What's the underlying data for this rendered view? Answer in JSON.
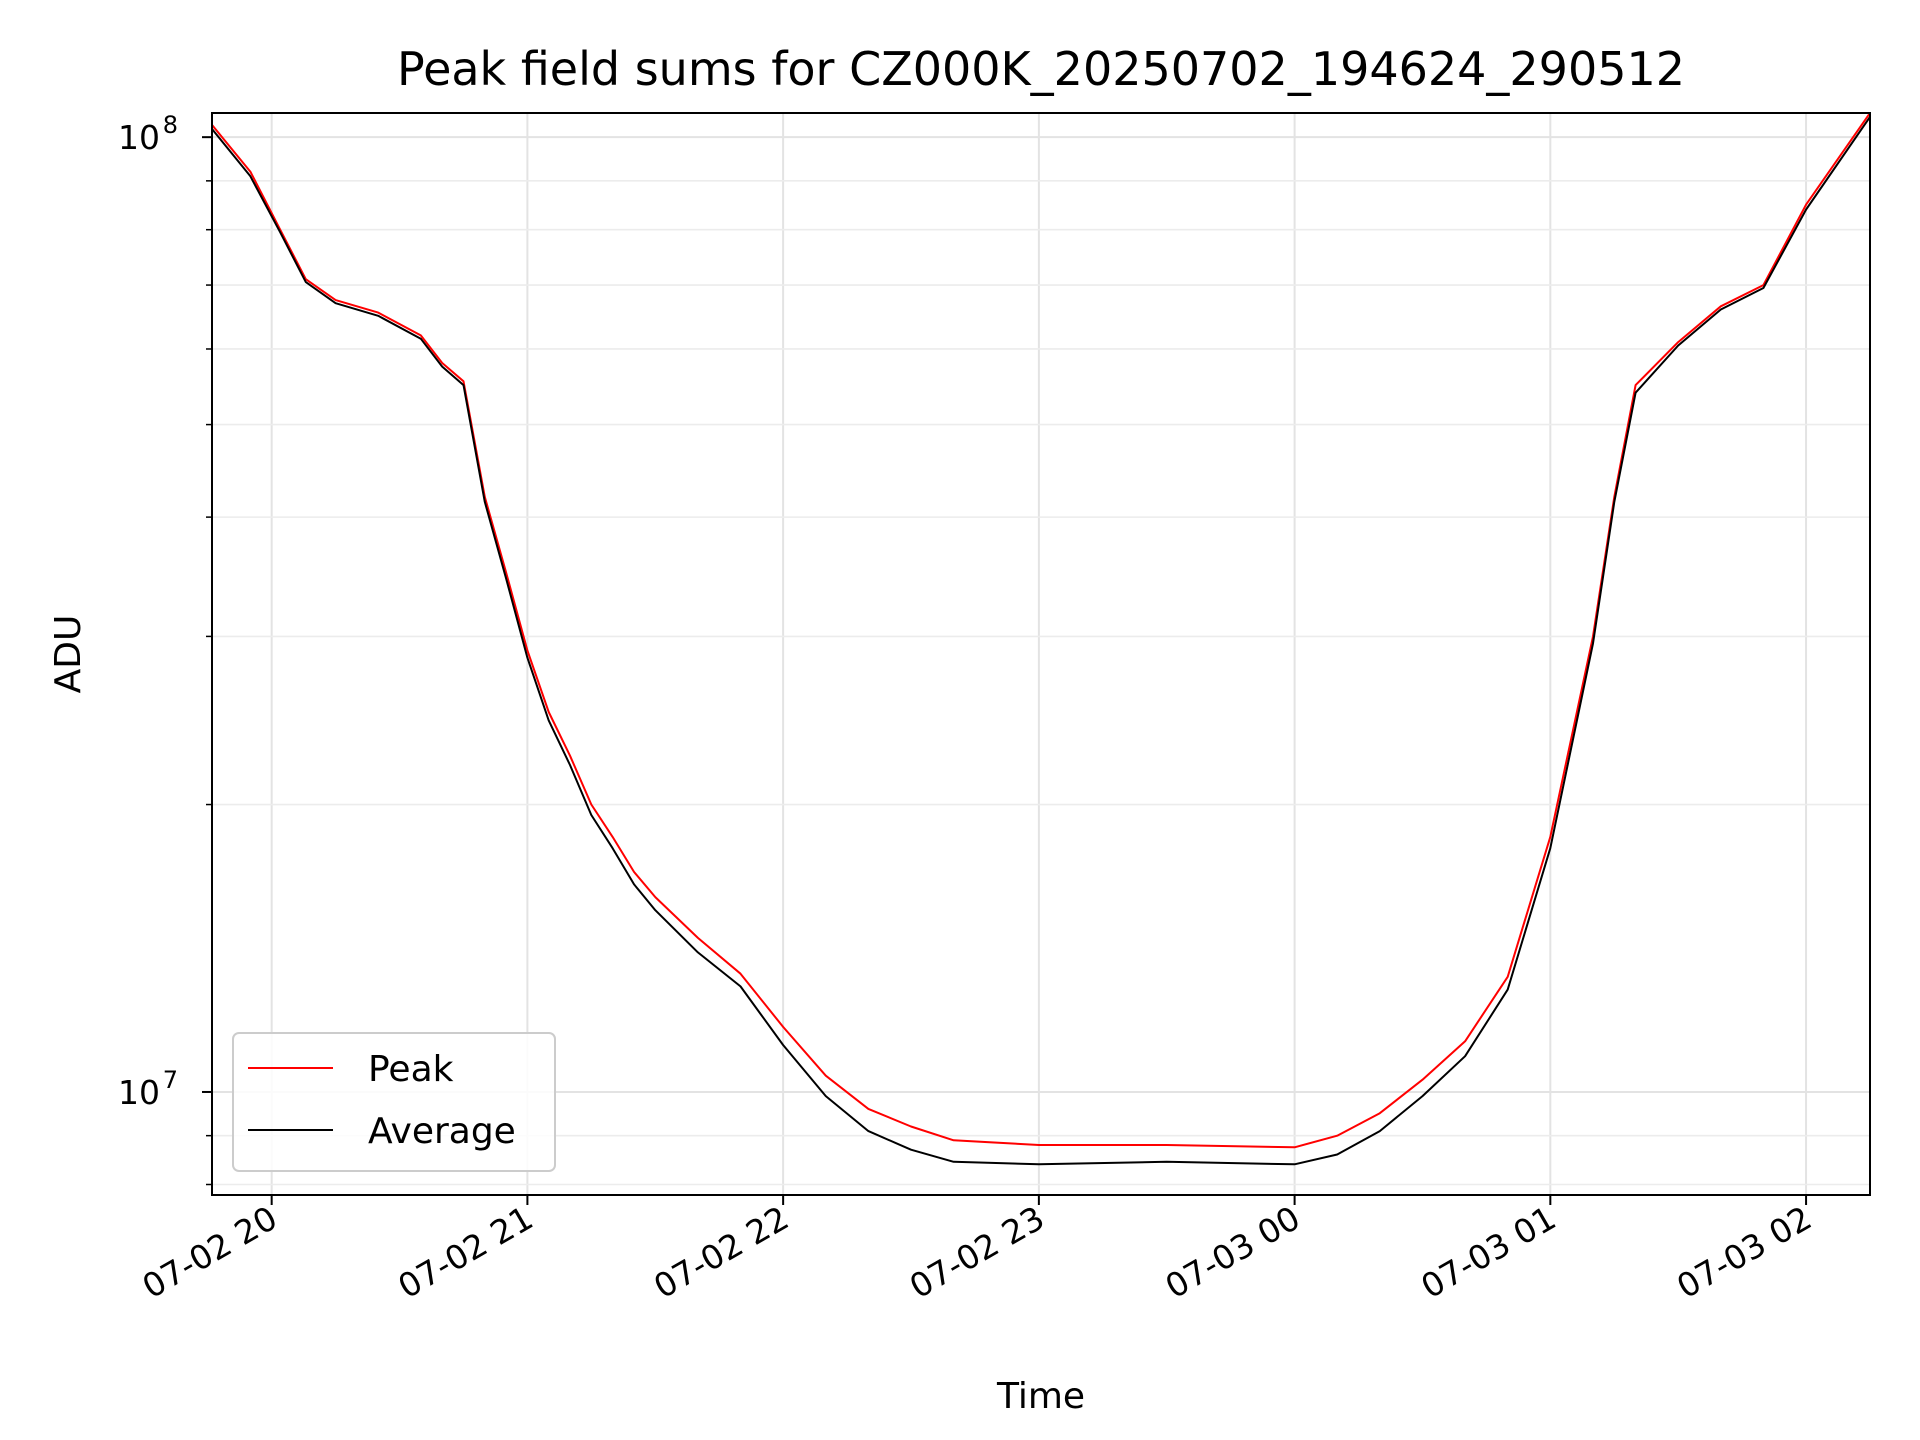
{
  "chart_data": {
    "type": "line",
    "title": "Peak field sums for CZ000K_20250702_194624_290512",
    "xlabel": "Time",
    "ylabel": "ADU",
    "yscale": "log",
    "xlim": [
      "2025-07-02T19:46",
      "2025-07-03T02:15"
    ],
    "ylim": [
      7800000,
      106000000
    ],
    "x_ticks": [
      "07-02 20",
      "07-02 21",
      "07-02 22",
      "07-02 23",
      "07-03 00",
      "07-03 01",
      "07-03 02"
    ],
    "x_tick_times": [
      "2025-07-02T20:00",
      "2025-07-02T21:00",
      "2025-07-02T22:00",
      "2025-07-02T23:00",
      "2025-07-03T00:00",
      "2025-07-03T01:00",
      "2025-07-03T02:00"
    ],
    "y_ticks": [
      "10^7",
      "10^8"
    ],
    "grid": true,
    "legend_position": "lower-left",
    "series": [
      {
        "name": "Peak",
        "color": "#ff0000",
        "points": [
          [
            "2025-07-02T19:46",
            103000000
          ],
          [
            "2025-07-02T19:55",
            92000000
          ],
          [
            "2025-07-02T20:02",
            80000000
          ],
          [
            "2025-07-02T20:08",
            71000000
          ],
          [
            "2025-07-02T20:15",
            67500000
          ],
          [
            "2025-07-02T20:25",
            65500000
          ],
          [
            "2025-07-02T20:35",
            62000000
          ],
          [
            "2025-07-02T20:40",
            58000000
          ],
          [
            "2025-07-02T20:45",
            55500000
          ],
          [
            "2025-07-02T20:50",
            42000000
          ],
          [
            "2025-07-02T20:55",
            35000000
          ],
          [
            "2025-07-02T21:00",
            29000000
          ],
          [
            "2025-07-02T21:05",
            25000000
          ],
          [
            "2025-07-02T21:10",
            22500000
          ],
          [
            "2025-07-02T21:15",
            20000000
          ],
          [
            "2025-07-02T21:20",
            18500000
          ],
          [
            "2025-07-02T21:25",
            17000000
          ],
          [
            "2025-07-02T21:30",
            16000000
          ],
          [
            "2025-07-02T21:40",
            14500000
          ],
          [
            "2025-07-02T21:50",
            13300000
          ],
          [
            "2025-07-02T22:00",
            11700000
          ],
          [
            "2025-07-02T22:10",
            10400000
          ],
          [
            "2025-07-02T22:20",
            9600000
          ],
          [
            "2025-07-02T22:30",
            9200000
          ],
          [
            "2025-07-02T22:40",
            8900000
          ],
          [
            "2025-07-02T23:00",
            8800000
          ],
          [
            "2025-07-02T23:30",
            8800000
          ],
          [
            "2025-07-03T00:00",
            8750000
          ],
          [
            "2025-07-03T00:10",
            9000000
          ],
          [
            "2025-07-03T00:20",
            9500000
          ],
          [
            "2025-07-03T00:30",
            10300000
          ],
          [
            "2025-07-03T00:40",
            11300000
          ],
          [
            "2025-07-03T00:50",
            13200000
          ],
          [
            "2025-07-03T01:00",
            18500000
          ],
          [
            "2025-07-03T01:10",
            30000000
          ],
          [
            "2025-07-03T01:15",
            42000000
          ],
          [
            "2025-07-03T01:20",
            55000000
          ],
          [
            "2025-07-03T01:30",
            61000000
          ],
          [
            "2025-07-03T01:40",
            66500000
          ],
          [
            "2025-07-03T01:50",
            70000000
          ],
          [
            "2025-07-03T02:00",
            85000000
          ],
          [
            "2025-07-03T02:15",
            106000000
          ]
        ]
      },
      {
        "name": "Average",
        "color": "#000000",
        "points": [
          [
            "2025-07-02T19:46",
            102000000
          ],
          [
            "2025-07-02T19:55",
            91000000
          ],
          [
            "2025-07-02T20:02",
            79500000
          ],
          [
            "2025-07-02T20:08",
            70500000
          ],
          [
            "2025-07-02T20:15",
            67000000
          ],
          [
            "2025-07-02T20:25",
            65000000
          ],
          [
            "2025-07-02T20:35",
            61500000
          ],
          [
            "2025-07-02T20:40",
            57500000
          ],
          [
            "2025-07-02T20:45",
            55000000
          ],
          [
            "2025-07-02T20:50",
            41500000
          ],
          [
            "2025-07-02T20:55",
            34500000
          ],
          [
            "2025-07-02T21:00",
            28500000
          ],
          [
            "2025-07-02T21:05",
            24500000
          ],
          [
            "2025-07-02T21:10",
            22000000
          ],
          [
            "2025-07-02T21:15",
            19500000
          ],
          [
            "2025-07-02T21:20",
            18000000
          ],
          [
            "2025-07-02T21:25",
            16500000
          ],
          [
            "2025-07-02T21:30",
            15500000
          ],
          [
            "2025-07-02T21:40",
            14000000
          ],
          [
            "2025-07-02T21:50",
            12900000
          ],
          [
            "2025-07-02T22:00",
            11200000
          ],
          [
            "2025-07-02T22:10",
            9900000
          ],
          [
            "2025-07-02T22:20",
            9100000
          ],
          [
            "2025-07-02T22:30",
            8700000
          ],
          [
            "2025-07-02T22:40",
            8450000
          ],
          [
            "2025-07-02T23:00",
            8400000
          ],
          [
            "2025-07-02T23:30",
            8450000
          ],
          [
            "2025-07-03T00:00",
            8400000
          ],
          [
            "2025-07-03T00:10",
            8600000
          ],
          [
            "2025-07-03T00:20",
            9100000
          ],
          [
            "2025-07-03T00:30",
            9900000
          ],
          [
            "2025-07-03T00:40",
            10900000
          ],
          [
            "2025-07-03T00:50",
            12800000
          ],
          [
            "2025-07-03T01:00",
            18000000
          ],
          [
            "2025-07-03T01:10",
            29500000
          ],
          [
            "2025-07-03T01:15",
            41500000
          ],
          [
            "2025-07-03T01:20",
            54000000
          ],
          [
            "2025-07-03T01:30",
            60500000
          ],
          [
            "2025-07-03T01:40",
            66000000
          ],
          [
            "2025-07-03T01:50",
            69500000
          ],
          [
            "2025-07-03T02:00",
            84000000
          ],
          [
            "2025-07-03T02:15",
            105000000
          ]
        ]
      }
    ]
  }
}
